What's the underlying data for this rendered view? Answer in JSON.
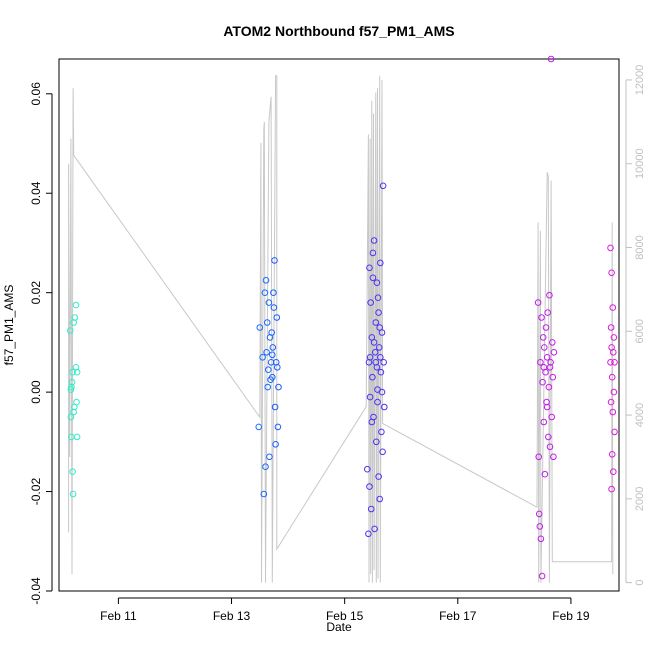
{
  "chart_data": {
    "type": "scatter",
    "title": "ATOM2 Northbound f57_PM1_AMS",
    "xlabel": "Date",
    "ylabel": "f57_PM1_AMS",
    "x_unit": "days since Feb 10 00:00",
    "xlim": [
      9.95,
      19.85
    ],
    "ylim": [
      -0.04,
      0.067
    ],
    "y2lim": [
      -200,
      12500
    ],
    "x_ticks": [
      {
        "value": 11,
        "label": "Feb 11"
      },
      {
        "value": 13,
        "label": "Feb 13"
      },
      {
        "value": 15,
        "label": "Feb 15"
      },
      {
        "value": 17,
        "label": "Feb 17"
      },
      {
        "value": 19,
        "label": "Feb 19"
      }
    ],
    "y_ticks": [
      {
        "value": -0.04,
        "label": "-0.04"
      },
      {
        "value": -0.02,
        "label": "-0.02"
      },
      {
        "value": 0.0,
        "label": "0.00"
      },
      {
        "value": 0.02,
        "label": "0.02"
      },
      {
        "value": 0.04,
        "label": "0.04"
      },
      {
        "value": 0.06,
        "label": "0.06"
      }
    ],
    "y2_ticks": [
      {
        "value": 0,
        "label": "0"
      },
      {
        "value": 2000,
        "label": "2000"
      },
      {
        "value": 4000,
        "label": "4000"
      },
      {
        "value": 6000,
        "label": "6000"
      },
      {
        "value": 8000,
        "label": "8000"
      },
      {
        "value": 10000,
        "label": "10000"
      },
      {
        "value": 12000,
        "label": "12000"
      }
    ],
    "colors": {
      "axis": "#000000",
      "secondary_axis": "#c0c0c0",
      "altitude_line": "#c8c8c8",
      "point_gradient": [
        "#2ef0c8",
        "#14c8f0",
        "#1a50ff",
        "#5a2cf0",
        "#b41cf0",
        "#dc1cdc"
      ]
    },
    "series": [
      {
        "name": "f57_PM1_AMS",
        "points": [
          {
            "x": 10.15,
            "y": 0.0124
          },
          {
            "x": 10.16,
            "y": -0.005
          },
          {
            "x": 10.17,
            "y": 0.001
          },
          {
            "x": 10.17,
            "y": -0.009
          },
          {
            "x": 10.18,
            "y": 0.002
          },
          {
            "x": 10.19,
            "y": -0.016
          },
          {
            "x": 10.2,
            "y": -0.0205
          },
          {
            "x": 10.19,
            "y": 0.004
          },
          {
            "x": 10.21,
            "y": 0.014
          },
          {
            "x": 10.21,
            "y": -0.004
          },
          {
            "x": 10.23,
            "y": 0.015
          },
          {
            "x": 10.25,
            "y": 0.0175
          },
          {
            "x": 10.25,
            "y": 0.005
          },
          {
            "x": 10.26,
            "y": -0.002
          },
          {
            "x": 10.27,
            "y": -0.009
          },
          {
            "x": 10.27,
            "y": 0.004
          },
          {
            "x": 10.16,
            "y": 0.0005
          },
          {
            "x": 10.22,
            "y": -0.003
          },
          {
            "x": 13.48,
            "y": -0.007
          },
          {
            "x": 13.5,
            "y": 0.013
          },
          {
            "x": 13.55,
            "y": 0.007
          },
          {
            "x": 13.57,
            "y": -0.0205
          },
          {
            "x": 13.59,
            "y": 0.02
          },
          {
            "x": 13.6,
            "y": -0.015
          },
          {
            "x": 13.61,
            "y": 0.0225
          },
          {
            "x": 13.62,
            "y": 0.008
          },
          {
            "x": 13.63,
            "y": 0.014
          },
          {
            "x": 13.64,
            "y": 0.001
          },
          {
            "x": 13.65,
            "y": 0.0045
          },
          {
            "x": 13.66,
            "y": 0.018
          },
          {
            "x": 13.67,
            "y": -0.013
          },
          {
            "x": 13.68,
            "y": 0.011
          },
          {
            "x": 13.7,
            "y": 0.006
          },
          {
            "x": 13.71,
            "y": 0.012
          },
          {
            "x": 13.72,
            "y": 0.003
          },
          {
            "x": 13.73,
            "y": 0.009
          },
          {
            "x": 13.74,
            "y": 0.02
          },
          {
            "x": 13.75,
            "y": 0.017
          },
          {
            "x": 13.76,
            "y": 0.0265
          },
          {
            "x": 13.77,
            "y": -0.003
          },
          {
            "x": 13.78,
            "y": -0.0105
          },
          {
            "x": 13.79,
            "y": 0.006
          },
          {
            "x": 13.8,
            "y": 0.015
          },
          {
            "x": 13.81,
            "y": 0.005
          },
          {
            "x": 13.82,
            "y": -0.007
          },
          {
            "x": 13.83,
            "y": 0.001
          },
          {
            "x": 13.72,
            "y": 0.0075
          },
          {
            "x": 13.69,
            "y": 0.0025
          },
          {
            "x": 15.4,
            "y": -0.0155
          },
          {
            "x": 15.42,
            "y": -0.0285
          },
          {
            "x": 15.43,
            "y": 0.006
          },
          {
            "x": 15.44,
            "y": 0.025
          },
          {
            "x": 15.45,
            "y": -0.001
          },
          {
            "x": 15.46,
            "y": 0.018
          },
          {
            "x": 15.47,
            "y": -0.0235
          },
          {
            "x": 15.48,
            "y": 0.011
          },
          {
            "x": 15.49,
            "y": 0.003
          },
          {
            "x": 15.5,
            "y": 0.028
          },
          {
            "x": 15.51,
            "y": -0.005
          },
          {
            "x": 15.52,
            "y": 0.0305
          },
          {
            "x": 15.53,
            "y": -0.0275
          },
          {
            "x": 15.54,
            "y": 0.008
          },
          {
            "x": 15.55,
            "y": 0.014
          },
          {
            "x": 15.56,
            "y": -0.01
          },
          {
            "x": 15.57,
            "y": 0.022
          },
          {
            "x": 15.58,
            "y": 0.0005
          },
          {
            "x": 15.59,
            "y": 0.019
          },
          {
            "x": 15.6,
            "y": -0.017
          },
          {
            "x": 15.61,
            "y": 0.009
          },
          {
            "x": 15.62,
            "y": -0.0215
          },
          {
            "x": 15.63,
            "y": 0.026
          },
          {
            "x": 15.64,
            "y": 0.004
          },
          {
            "x": 15.65,
            "y": -0.008
          },
          {
            "x": 15.66,
            "y": 0.012
          },
          {
            "x": 15.67,
            "y": -0.012
          },
          {
            "x": 15.68,
            "y": 0.0415
          },
          {
            "x": 15.69,
            "y": 0.006
          },
          {
            "x": 15.7,
            "y": -0.003
          },
          {
            "x": 15.45,
            "y": 0.007
          },
          {
            "x": 15.48,
            "y": -0.006
          },
          {
            "x": 15.52,
            "y": 0.01
          },
          {
            "x": 15.55,
            "y": 0.006
          },
          {
            "x": 15.58,
            "y": -0.002
          },
          {
            "x": 15.6,
            "y": 0.016
          },
          {
            "x": 15.63,
            "y": 0.007
          },
          {
            "x": 15.66,
            "y": 0.0
          },
          {
            "x": 15.5,
            "y": 0.023
          },
          {
            "x": 15.57,
            "y": 0.005
          },
          {
            "x": 15.62,
            "y": 0.013
          },
          {
            "x": 15.44,
            "y": -0.019
          },
          {
            "x": 18.42,
            "y": 0.018
          },
          {
            "x": 18.43,
            "y": -0.013
          },
          {
            "x": 18.44,
            "y": -0.0245
          },
          {
            "x": 18.45,
            "y": -0.027
          },
          {
            "x": 18.46,
            "y": 0.006
          },
          {
            "x": 18.47,
            "y": -0.0295
          },
          {
            "x": 18.48,
            "y": 0.015
          },
          {
            "x": 18.49,
            "y": -0.037
          },
          {
            "x": 18.5,
            "y": 0.002
          },
          {
            "x": 18.51,
            "y": 0.011
          },
          {
            "x": 18.52,
            "y": -0.006
          },
          {
            "x": 18.53,
            "y": 0.009
          },
          {
            "x": 18.54,
            "y": -0.0165
          },
          {
            "x": 18.55,
            "y": 0.004
          },
          {
            "x": 18.56,
            "y": 0.013
          },
          {
            "x": 18.57,
            "y": -0.002
          },
          {
            "x": 18.58,
            "y": 0.007
          },
          {
            "x": 18.59,
            "y": 0.016
          },
          {
            "x": 18.6,
            "y": -0.009
          },
          {
            "x": 18.61,
            "y": 0.001
          },
          {
            "x": 18.62,
            "y": 0.0195
          },
          {
            "x": 18.63,
            "y": -0.011
          },
          {
            "x": 18.64,
            "y": 0.006
          },
          {
            "x": 18.65,
            "y": 0.067
          },
          {
            "x": 18.66,
            "y": -0.005
          },
          {
            "x": 18.67,
            "y": 0.01
          },
          {
            "x": 18.68,
            "y": 0.003
          },
          {
            "x": 18.69,
            "y": -0.013
          },
          {
            "x": 18.7,
            "y": 0.008
          },
          {
            "x": 18.52,
            "y": 0.005
          },
          {
            "x": 18.58,
            "y": -0.003
          },
          {
            "x": 18.63,
            "y": 0.005
          },
          {
            "x": 19.7,
            "y": 0.029
          },
          {
            "x": 19.7,
            "y": 0.006
          },
          {
            "x": 19.71,
            "y": -0.002
          },
          {
            "x": 19.71,
            "y": 0.013
          },
          {
            "x": 19.72,
            "y": -0.0195
          },
          {
            "x": 19.72,
            "y": 0.024
          },
          {
            "x": 19.73,
            "y": 0.003
          },
          {
            "x": 19.73,
            "y": -0.0125
          },
          {
            "x": 19.74,
            "y": 0.017
          },
          {
            "x": 19.74,
            "y": -0.004
          },
          {
            "x": 19.75,
            "y": 0.008
          },
          {
            "x": 19.75,
            "y": -0.016
          },
          {
            "x": 19.76,
            "y": 0.011
          },
          {
            "x": 19.76,
            "y": 0.0
          },
          {
            "x": 19.77,
            "y": 0.006
          },
          {
            "x": 19.77,
            "y": -0.008
          },
          {
            "x": 19.72,
            "y": 0.009
          }
        ]
      },
      {
        "name": "altitude",
        "axis": "right",
        "points": [
          {
            "x": 10.12,
            "y": 1200
          },
          {
            "x": 10.12,
            "y": 10000
          },
          {
            "x": 10.14,
            "y": 3000
          },
          {
            "x": 10.16,
            "y": 10600
          },
          {
            "x": 10.18,
            "y": 200
          },
          {
            "x": 10.2,
            "y": 11800
          },
          {
            "x": 10.21,
            "y": 10200
          },
          {
            "x": 13.5,
            "y": 3950
          },
          {
            "x": 13.52,
            "y": 10500
          },
          {
            "x": 13.53,
            "y": 0
          },
          {
            "x": 13.57,
            "y": 10800
          },
          {
            "x": 13.58,
            "y": 11000
          },
          {
            "x": 13.6,
            "y": 0
          },
          {
            "x": 13.66,
            "y": 11000
          },
          {
            "x": 13.7,
            "y": 11600
          },
          {
            "x": 13.72,
            "y": 0
          },
          {
            "x": 13.78,
            "y": 12100
          },
          {
            "x": 13.8,
            "y": 12100
          },
          {
            "x": 13.8,
            "y": 800
          },
          {
            "x": 15.38,
            "y": 4200
          },
          {
            "x": 15.42,
            "y": 10700
          },
          {
            "x": 15.43,
            "y": 0
          },
          {
            "x": 15.45,
            "y": 10600
          },
          {
            "x": 15.46,
            "y": 200
          },
          {
            "x": 15.48,
            "y": 11500
          },
          {
            "x": 15.49,
            "y": 0
          },
          {
            "x": 15.51,
            "y": 11200
          },
          {
            "x": 15.52,
            "y": 300
          },
          {
            "x": 15.55,
            "y": 11700
          },
          {
            "x": 15.56,
            "y": 0
          },
          {
            "x": 15.58,
            "y": 11800
          },
          {
            "x": 15.59,
            "y": 100
          },
          {
            "x": 15.62,
            "y": 12100
          },
          {
            "x": 15.63,
            "y": 0
          },
          {
            "x": 15.66,
            "y": 12000
          },
          {
            "x": 15.67,
            "y": 3800
          },
          {
            "x": 18.4,
            "y": 1800
          },
          {
            "x": 18.42,
            "y": 8600
          },
          {
            "x": 18.43,
            "y": 0
          },
          {
            "x": 18.46,
            "y": 8400
          },
          {
            "x": 18.47,
            "y": 0
          },
          {
            "x": 18.58,
            "y": 9800
          },
          {
            "x": 18.6,
            "y": 9700
          },
          {
            "x": 18.62,
            "y": 0
          },
          {
            "x": 18.65,
            "y": 9600
          },
          {
            "x": 18.67,
            "y": 500
          },
          {
            "x": 19.72,
            "y": 500
          },
          {
            "x": 19.73,
            "y": 8600
          },
          {
            "x": 19.74,
            "y": 200
          }
        ]
      }
    ]
  }
}
